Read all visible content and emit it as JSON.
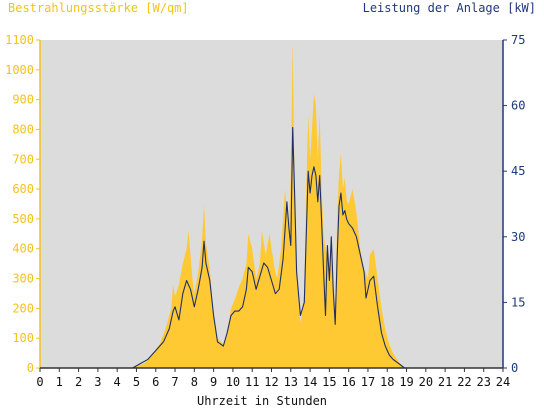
{
  "chart_data": {
    "type": "area",
    "title": "",
    "y_left_label": "Bestrahlungsstärke [W/qm]",
    "y_right_label": "Leistung der Anlage [kW]",
    "xlabel": "Uhrzeit in Stunden",
    "xlim": [
      0,
      24
    ],
    "x_ticks": [
      "0",
      "1",
      "2",
      "3",
      "4",
      "5",
      "6",
      "7",
      "8",
      "9",
      "10",
      "11",
      "12",
      "13",
      "14",
      "15",
      "16",
      "17",
      "18",
      "19",
      "20",
      "21",
      "22",
      "23",
      "24"
    ],
    "y_left_lim": [
      0,
      1100
    ],
    "y_left_ticks": [
      "0",
      "100",
      "200",
      "300",
      "400",
      "500",
      "600",
      "700",
      "800",
      "900",
      "1000",
      "1100"
    ],
    "y_right_lim": [
      0,
      75
    ],
    "y_right_ticks": [
      "0",
      "15",
      "30",
      "45",
      "60",
      "75"
    ],
    "grid": false,
    "background_color": "#dcdcdc",
    "series": [
      {
        "axis": "left",
        "render": "area",
        "color": "#ffc933",
        "points": [
          [
            0,
            0
          ],
          [
            4.6,
            0
          ],
          [
            5.0,
            5
          ],
          [
            5.4,
            15
          ],
          [
            5.8,
            40
          ],
          [
            6.2,
            80
          ],
          [
            6.5,
            130
          ],
          [
            6.8,
            200
          ],
          [
            6.9,
            280
          ],
          [
            7.0,
            240
          ],
          [
            7.2,
            280
          ],
          [
            7.4,
            350
          ],
          [
            7.6,
            400
          ],
          [
            7.7,
            460
          ],
          [
            7.8,
            380
          ],
          [
            7.9,
            300
          ],
          [
            8.0,
            250
          ],
          [
            8.2,
            320
          ],
          [
            8.4,
            430
          ],
          [
            8.5,
            550
          ],
          [
            8.6,
            420
          ],
          [
            8.8,
            330
          ],
          [
            9.0,
            180
          ],
          [
            9.2,
            100
          ],
          [
            9.5,
            80
          ],
          [
            9.7,
            120
          ],
          [
            9.9,
            200
          ],
          [
            10.1,
            230
          ],
          [
            10.3,
            270
          ],
          [
            10.5,
            300
          ],
          [
            10.7,
            350
          ],
          [
            10.8,
            450
          ],
          [
            11.0,
            400
          ],
          [
            11.2,
            300
          ],
          [
            11.4,
            350
          ],
          [
            11.5,
            460
          ],
          [
            11.7,
            380
          ],
          [
            11.9,
            450
          ],
          [
            12.0,
            400
          ],
          [
            12.2,
            320
          ],
          [
            12.3,
            300
          ],
          [
            12.5,
            400
          ],
          [
            12.7,
            600
          ],
          [
            12.9,
            450
          ],
          [
            13.0,
            650
          ],
          [
            13.1,
            1100
          ],
          [
            13.2,
            600
          ],
          [
            13.3,
            300
          ],
          [
            13.5,
            150
          ],
          [
            13.7,
            250
          ],
          [
            13.8,
            600
          ],
          [
            13.9,
            850
          ],
          [
            14.0,
            700
          ],
          [
            14.1,
            800
          ],
          [
            14.2,
            920
          ],
          [
            14.3,
            880
          ],
          [
            14.4,
            700
          ],
          [
            14.5,
            850
          ],
          [
            14.6,
            600
          ],
          [
            14.7,
            450
          ],
          [
            14.8,
            400
          ],
          [
            14.9,
            380
          ],
          [
            15.0,
            320
          ],
          [
            15.1,
            450
          ],
          [
            15.2,
            300
          ],
          [
            15.3,
            180
          ],
          [
            15.4,
            500
          ],
          [
            15.5,
            650
          ],
          [
            15.6,
            720
          ],
          [
            15.7,
            600
          ],
          [
            15.8,
            640
          ],
          [
            15.9,
            560
          ],
          [
            16.0,
            550
          ],
          [
            16.2,
            600
          ],
          [
            16.4,
            520
          ],
          [
            16.6,
            400
          ],
          [
            16.8,
            330
          ],
          [
            17.0,
            300
          ],
          [
            17.1,
            380
          ],
          [
            17.3,
            400
          ],
          [
            17.5,
            300
          ],
          [
            17.7,
            200
          ],
          [
            17.9,
            130
          ],
          [
            18.1,
            80
          ],
          [
            18.3,
            50
          ],
          [
            18.5,
            30
          ],
          [
            18.6,
            20
          ],
          [
            18.8,
            5
          ],
          [
            19.0,
            0
          ],
          [
            24,
            0
          ]
        ]
      },
      {
        "axis": "right",
        "render": "line",
        "color": "#1f2f66",
        "points": [
          [
            0,
            0
          ],
          [
            4.8,
            0
          ],
          [
            5.2,
            1
          ],
          [
            5.6,
            2
          ],
          [
            6.0,
            4
          ],
          [
            6.4,
            6
          ],
          [
            6.7,
            9
          ],
          [
            6.9,
            13
          ],
          [
            7.0,
            14
          ],
          [
            7.2,
            11
          ],
          [
            7.4,
            17
          ],
          [
            7.6,
            20
          ],
          [
            7.8,
            18
          ],
          [
            8.0,
            14
          ],
          [
            8.2,
            18
          ],
          [
            8.4,
            23
          ],
          [
            8.5,
            29
          ],
          [
            8.6,
            24
          ],
          [
            8.8,
            20
          ],
          [
            9.0,
            12
          ],
          [
            9.2,
            6
          ],
          [
            9.5,
            5
          ],
          [
            9.7,
            8
          ],
          [
            9.9,
            12
          ],
          [
            10.1,
            13
          ],
          [
            10.3,
            13
          ],
          [
            10.5,
            14
          ],
          [
            10.7,
            18
          ],
          [
            10.8,
            23
          ],
          [
            11.0,
            22
          ],
          [
            11.2,
            18
          ],
          [
            11.4,
            21
          ],
          [
            11.6,
            24
          ],
          [
            11.8,
            23
          ],
          [
            12.0,
            20
          ],
          [
            12.2,
            17
          ],
          [
            12.4,
            18
          ],
          [
            12.6,
            25
          ],
          [
            12.8,
            38
          ],
          [
            12.9,
            32
          ],
          [
            13.0,
            28
          ],
          [
            13.1,
            55
          ],
          [
            13.2,
            40
          ],
          [
            13.3,
            22
          ],
          [
            13.5,
            12
          ],
          [
            13.7,
            15
          ],
          [
            13.8,
            30
          ],
          [
            13.9,
            45
          ],
          [
            14.0,
            40
          ],
          [
            14.1,
            44
          ],
          [
            14.2,
            46
          ],
          [
            14.3,
            44
          ],
          [
            14.4,
            38
          ],
          [
            14.5,
            44
          ],
          [
            14.6,
            33
          ],
          [
            14.7,
            22
          ],
          [
            14.8,
            12
          ],
          [
            14.9,
            28
          ],
          [
            15.0,
            20
          ],
          [
            15.1,
            30
          ],
          [
            15.2,
            18
          ],
          [
            15.3,
            10
          ],
          [
            15.4,
            25
          ],
          [
            15.5,
            37
          ],
          [
            15.6,
            40
          ],
          [
            15.7,
            35
          ],
          [
            15.8,
            36
          ],
          [
            15.9,
            34
          ],
          [
            16.0,
            33
          ],
          [
            16.2,
            32
          ],
          [
            16.4,
            30
          ],
          [
            16.6,
            26
          ],
          [
            16.8,
            22
          ],
          [
            16.9,
            16
          ],
          [
            17.0,
            18
          ],
          [
            17.1,
            20
          ],
          [
            17.3,
            21
          ],
          [
            17.5,
            14
          ],
          [
            17.7,
            8
          ],
          [
            17.9,
            5
          ],
          [
            18.1,
            3
          ],
          [
            18.3,
            2
          ],
          [
            18.6,
            1
          ],
          [
            18.9,
            0
          ],
          [
            24,
            0
          ]
        ]
      }
    ]
  }
}
